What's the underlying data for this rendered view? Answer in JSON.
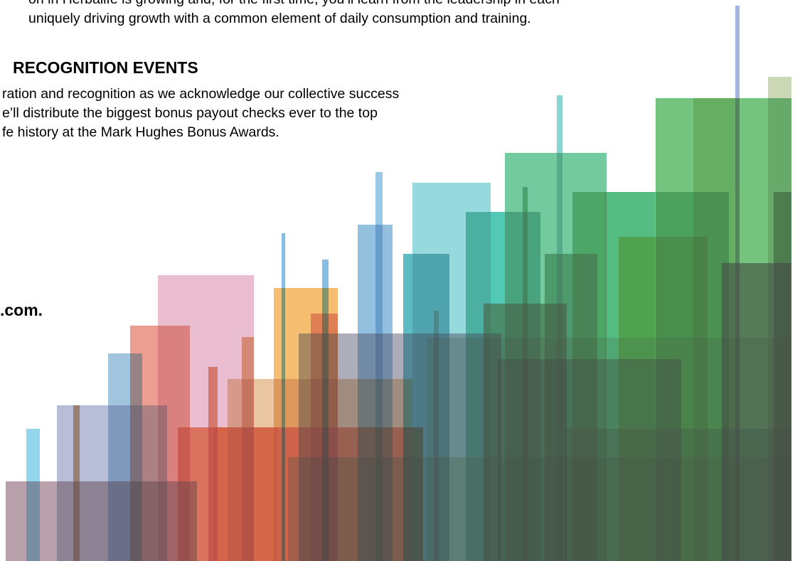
{
  "intro": {
    "lines": [
      "on in Herbalife is growing and, for the first time, you’ll learn from the leadership in each",
      "uniquely driving growth with a common element of daily consumption and training."
    ]
  },
  "section": {
    "heading": "RECOGNITION EVENTS",
    "lines": [
      "ration and recognition as we acknowledge our collective success",
      "e’ll distribute the biggest bonus payout checks ever to the top",
      "fe history at the Mark Hughes Bonus Awards."
    ]
  },
  "footer": {
    "url_fragment": ".com."
  }
}
